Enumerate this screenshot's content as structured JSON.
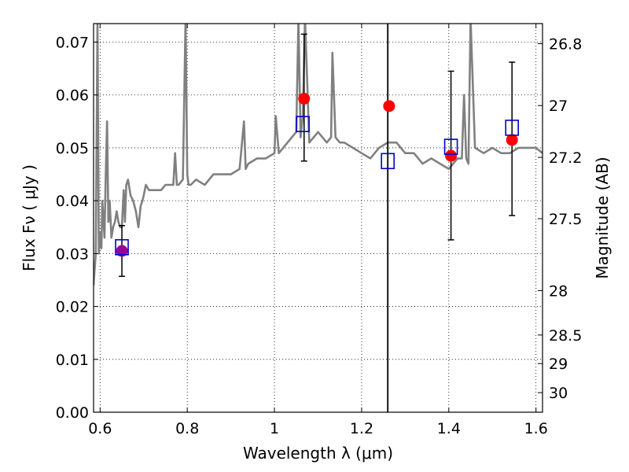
{
  "chart_data": {
    "type": "line",
    "title": "",
    "xlabel": "Wavelength  λ (μm)",
    "ylabel": "Flux  Fν  ( μJy )",
    "ylabel_right": "Magnitude (AB)",
    "xlim": [
      0.585,
      1.615
    ],
    "ylim": [
      0.0,
      0.0735
    ],
    "grid": true,
    "xticks": [
      0.6,
      0.8,
      1.0,
      1.2,
      1.4,
      1.6
    ],
    "xtick_labels": [
      "0.6",
      "0.8",
      "1",
      "1.2",
      "1.4",
      "1.6"
    ],
    "yticks": [
      0.0,
      0.01,
      0.02,
      0.03,
      0.04,
      0.05,
      0.06,
      0.07
    ],
    "ytick_labels": [
      "0.00",
      "0.01",
      "0.02",
      "0.03",
      "0.04",
      "0.05",
      "0.06",
      "0.07"
    ],
    "right_ticks": [
      {
        "label": "26.8",
        "flux": 0.0697
      },
      {
        "label": "27",
        "flux": 0.058
      },
      {
        "label": "27.2",
        "flux": 0.0482
      },
      {
        "label": "27.5",
        "flux": 0.0366
      },
      {
        "label": "28",
        "flux": 0.023
      },
      {
        "label": "28.5",
        "flux": 0.0146
      },
      {
        "label": "29",
        "flux": 0.0092
      },
      {
        "label": "30",
        "flux": 0.0037
      }
    ],
    "vertical_line_x": 1.26,
    "colors": {
      "model": "#808080",
      "observed": "#ff0000",
      "observed_first": "#990099",
      "synthetic": "#0000cc",
      "errorbar": "#000000",
      "grid": "#000000",
      "vline": "#000000"
    },
    "series": [
      {
        "name": "model spectrum",
        "x": [
          0.585,
          0.59,
          0.594,
          0.597,
          0.6,
          0.603,
          0.605,
          0.608,
          0.61,
          0.613,
          0.616,
          0.619,
          0.622,
          0.626,
          0.63,
          0.634,
          0.638,
          0.642,
          0.646,
          0.65,
          0.654,
          0.657,
          0.66,
          0.664,
          0.67,
          0.676,
          0.682,
          0.688,
          0.693,
          0.697,
          0.7,
          0.705,
          0.712,
          0.72,
          0.73,
          0.74,
          0.75,
          0.76,
          0.768,
          0.772,
          0.776,
          0.78,
          0.79,
          0.796,
          0.8,
          0.803,
          0.808,
          0.82,
          0.84,
          0.86,
          0.88,
          0.9,
          0.92,
          0.93,
          0.934,
          0.94,
          0.96,
          0.98,
          1.0,
          1.003,
          1.01,
          1.02,
          1.03,
          1.04,
          1.05,
          1.055,
          1.06,
          1.065,
          1.07,
          1.08,
          1.09,
          1.1,
          1.12,
          1.13,
          1.133,
          1.14,
          1.15,
          1.16,
          1.18,
          1.2,
          1.22,
          1.24,
          1.26,
          1.28,
          1.29,
          1.3,
          1.32,
          1.34,
          1.36,
          1.38,
          1.4,
          1.41,
          1.42,
          1.43,
          1.435,
          1.44,
          1.445,
          1.45,
          1.46,
          1.48,
          1.5,
          1.52,
          1.54,
          1.56,
          1.58,
          1.6,
          1.615
        ],
        "y": [
          0.024,
          0.03,
          0.0745,
          0.03,
          0.034,
          0.031,
          0.04,
          0.036,
          0.033,
          0.045,
          0.055,
          0.036,
          0.04,
          0.033,
          0.035,
          0.036,
          0.038,
          0.036,
          0.035,
          0.035,
          0.042,
          0.036,
          0.043,
          0.044,
          0.041,
          0.04,
          0.038,
          0.035,
          0.039,
          0.04,
          0.041,
          0.043,
          0.042,
          0.042,
          0.042,
          0.042,
          0.043,
          0.043,
          0.043,
          0.049,
          0.043,
          0.043,
          0.044,
          0.0745,
          0.045,
          0.043,
          0.043,
          0.044,
          0.043,
          0.045,
          0.045,
          0.045,
          0.046,
          0.055,
          0.046,
          0.047,
          0.048,
          0.048,
          0.049,
          0.056,
          0.049,
          0.05,
          0.051,
          0.052,
          0.053,
          0.0745,
          0.052,
          0.056,
          0.0745,
          0.051,
          0.052,
          0.053,
          0.051,
          0.052,
          0.068,
          0.052,
          0.051,
          0.051,
          0.05,
          0.049,
          0.048,
          0.05,
          0.051,
          0.051,
          0.05,
          0.049,
          0.049,
          0.047,
          0.048,
          0.047,
          0.046,
          0.047,
          0.048,
          0.048,
          0.06,
          0.048,
          0.047,
          0.0745,
          0.05,
          0.049,
          0.05,
          0.049,
          0.049,
          0.05,
          0.05,
          0.05,
          0.049
        ]
      },
      {
        "name": "synthetic model photometry",
        "marker": "square",
        "x": [
          0.65,
          1.065,
          1.26,
          1.405,
          1.545
        ],
        "y": [
          0.0312,
          0.0545,
          0.0475,
          0.0502,
          0.0538
        ]
      },
      {
        "name": "observed photometry",
        "marker": "circle",
        "x": [
          0.65,
          1.068,
          1.263,
          1.405,
          1.545
        ],
        "y": [
          0.0305,
          0.0593,
          0.0579,
          0.0485,
          0.0515
        ],
        "yerr_low": [
          0.0048,
          0.0118,
          null,
          0.0159,
          0.0143
        ],
        "yerr_high": [
          0.0048,
          0.0122,
          null,
          0.016,
          0.0147
        ]
      }
    ]
  }
}
